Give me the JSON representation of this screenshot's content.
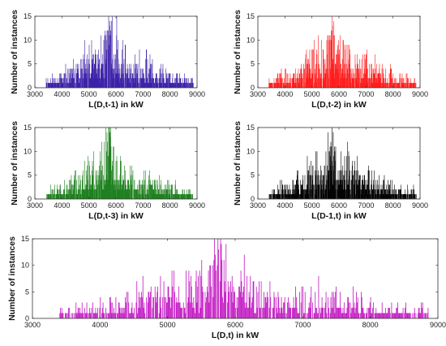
{
  "chart_data": [
    {
      "type": "bar",
      "xlabel": "L(D,t-1) in kW",
      "ylabel": "Number of instances",
      "xlim": [
        3000,
        9000
      ],
      "ylim": [
        0,
        15
      ],
      "xticks": [
        3000,
        4000,
        5000,
        6000,
        7000,
        8000,
        9000
      ],
      "yticks": [
        0,
        5,
        10,
        15
      ],
      "color": "#3a1fa8",
      "bins": {
        "start": 3400,
        "end": 8850,
        "width": 10
      },
      "profile": [
        {
          "x": 3400,
          "y": 1.2
        },
        {
          "x": 3800,
          "y": 1.6
        },
        {
          "x": 4300,
          "y": 2.3
        },
        {
          "x": 4700,
          "y": 3.8
        },
        {
          "x": 5100,
          "y": 4.6
        },
        {
          "x": 5500,
          "y": 5.2
        },
        {
          "x": 5750,
          "y": 8.5
        },
        {
          "x": 6000,
          "y": 5.8
        },
        {
          "x": 6500,
          "y": 4.2
        },
        {
          "x": 7000,
          "y": 3.4
        },
        {
          "x": 7500,
          "y": 2.5
        },
        {
          "x": 8000,
          "y": 1.8
        },
        {
          "x": 8850,
          "y": 1.1
        }
      ],
      "peaks": [
        {
          "x": 5720,
          "y": 15
        },
        {
          "x": 5770,
          "y": 14
        },
        {
          "x": 5690,
          "y": 12
        },
        {
          "x": 5810,
          "y": 11
        },
        {
          "x": 5650,
          "y": 10
        }
      ],
      "seed": 11
    },
    {
      "type": "bar",
      "xlabel": "L(D,t-2) in kW",
      "ylabel": "Number of instances",
      "xlim": [
        3000,
        9000
      ],
      "ylim": [
        0,
        15
      ],
      "xticks": [
        3000,
        4000,
        5000,
        6000,
        7000,
        8000,
        9000
      ],
      "yticks": [
        0,
        5,
        10,
        15
      ],
      "color": "#ff1a1a",
      "bins": {
        "start": 3400,
        "end": 8850,
        "width": 10
      },
      "profile": [
        {
          "x": 3400,
          "y": 1.2
        },
        {
          "x": 3800,
          "y": 1.6
        },
        {
          "x": 4300,
          "y": 2.3
        },
        {
          "x": 4700,
          "y": 3.8
        },
        {
          "x": 5100,
          "y": 4.6
        },
        {
          "x": 5500,
          "y": 5.2
        },
        {
          "x": 5750,
          "y": 8.5
        },
        {
          "x": 6000,
          "y": 5.8
        },
        {
          "x": 6500,
          "y": 4.2
        },
        {
          "x": 7000,
          "y": 3.4
        },
        {
          "x": 7500,
          "y": 2.5
        },
        {
          "x": 8000,
          "y": 1.8
        },
        {
          "x": 8850,
          "y": 1.1
        }
      ],
      "peaks": [
        {
          "x": 5740,
          "y": 15
        },
        {
          "x": 5790,
          "y": 14
        },
        {
          "x": 5700,
          "y": 12
        },
        {
          "x": 5830,
          "y": 11
        },
        {
          "x": 5660,
          "y": 10
        }
      ],
      "seed": 23
    },
    {
      "type": "bar",
      "xlabel": "L(D,t-3) in kW",
      "ylabel": "Number of instances",
      "xlim": [
        3000,
        9000
      ],
      "ylim": [
        0,
        15
      ],
      "xticks": [
        3000,
        4000,
        5000,
        6000,
        7000,
        8000,
        9000
      ],
      "yticks": [
        0,
        5,
        10,
        15
      ],
      "color": "#1a7f1a",
      "bins": {
        "start": 3400,
        "end": 8850,
        "width": 10
      },
      "profile": [
        {
          "x": 3400,
          "y": 1.2
        },
        {
          "x": 3800,
          "y": 1.6
        },
        {
          "x": 4300,
          "y": 2.3
        },
        {
          "x": 4700,
          "y": 3.8
        },
        {
          "x": 5100,
          "y": 4.6
        },
        {
          "x": 5500,
          "y": 5.2
        },
        {
          "x": 5750,
          "y": 8.5
        },
        {
          "x": 6000,
          "y": 5.8
        },
        {
          "x": 6500,
          "y": 4.2
        },
        {
          "x": 7000,
          "y": 3.4
        },
        {
          "x": 7500,
          "y": 2.5
        },
        {
          "x": 8000,
          "y": 1.8
        },
        {
          "x": 8850,
          "y": 1.1
        }
      ],
      "peaks": [
        {
          "x": 5720,
          "y": 15
        },
        {
          "x": 5770,
          "y": 14
        },
        {
          "x": 5680,
          "y": 12
        },
        {
          "x": 5810,
          "y": 11
        },
        {
          "x": 5640,
          "y": 10
        }
      ],
      "seed": 37
    },
    {
      "type": "bar",
      "xlabel": "L(D-1,t) in kW",
      "ylabel": "Number of instances",
      "xlim": [
        3000,
        9000
      ],
      "ylim": [
        0,
        15
      ],
      "xticks": [
        3000,
        4000,
        5000,
        6000,
        7000,
        8000,
        9000
      ],
      "yticks": [
        0,
        5,
        10,
        15
      ],
      "color": "#000000",
      "bins": {
        "start": 3400,
        "end": 8850,
        "width": 10
      },
      "profile": [
        {
          "x": 3400,
          "y": 1.2
        },
        {
          "x": 3800,
          "y": 1.6
        },
        {
          "x": 4300,
          "y": 2.3
        },
        {
          "x": 4700,
          "y": 3.8
        },
        {
          "x": 5100,
          "y": 4.6
        },
        {
          "x": 5500,
          "y": 5.2
        },
        {
          "x": 5750,
          "y": 8.5
        },
        {
          "x": 6000,
          "y": 5.8
        },
        {
          "x": 6500,
          "y": 4.2
        },
        {
          "x": 7000,
          "y": 3.4
        },
        {
          "x": 7500,
          "y": 2.5
        },
        {
          "x": 8000,
          "y": 1.8
        },
        {
          "x": 8850,
          "y": 1.1
        }
      ],
      "peaks": [
        {
          "x": 5730,
          "y": 15
        },
        {
          "x": 5780,
          "y": 14
        },
        {
          "x": 5690,
          "y": 12
        },
        {
          "x": 5820,
          "y": 11
        },
        {
          "x": 5650,
          "y": 10
        }
      ],
      "seed": 53
    },
    {
      "type": "bar",
      "xlabel": "L(D,t) in kW",
      "ylabel": "Number of instances",
      "xlim": [
        3000,
        9000
      ],
      "ylim": [
        0,
        15
      ],
      "xticks": [
        3000,
        4000,
        5000,
        6000,
        7000,
        8000,
        9000
      ],
      "yticks": [
        0,
        5,
        10,
        15
      ],
      "color": "#c41fc4",
      "bins": {
        "start": 3400,
        "end": 8850,
        "width": 10
      },
      "profile": [
        {
          "x": 3400,
          "y": 1.2
        },
        {
          "x": 3800,
          "y": 1.6
        },
        {
          "x": 4300,
          "y": 2.3
        },
        {
          "x": 4700,
          "y": 3.8
        },
        {
          "x": 5100,
          "y": 4.6
        },
        {
          "x": 5500,
          "y": 5.2
        },
        {
          "x": 5750,
          "y": 8.5
        },
        {
          "x": 6000,
          "y": 5.8
        },
        {
          "x": 6500,
          "y": 4.2
        },
        {
          "x": 7000,
          "y": 3.4
        },
        {
          "x": 7500,
          "y": 2.5
        },
        {
          "x": 8000,
          "y": 1.8
        },
        {
          "x": 8850,
          "y": 1.1
        }
      ],
      "peaks": [
        {
          "x": 5740,
          "y": 15
        },
        {
          "x": 5790,
          "y": 14
        },
        {
          "x": 5700,
          "y": 12
        },
        {
          "x": 5830,
          "y": 11
        },
        {
          "x": 5660,
          "y": 10
        }
      ],
      "seed": 71
    }
  ]
}
